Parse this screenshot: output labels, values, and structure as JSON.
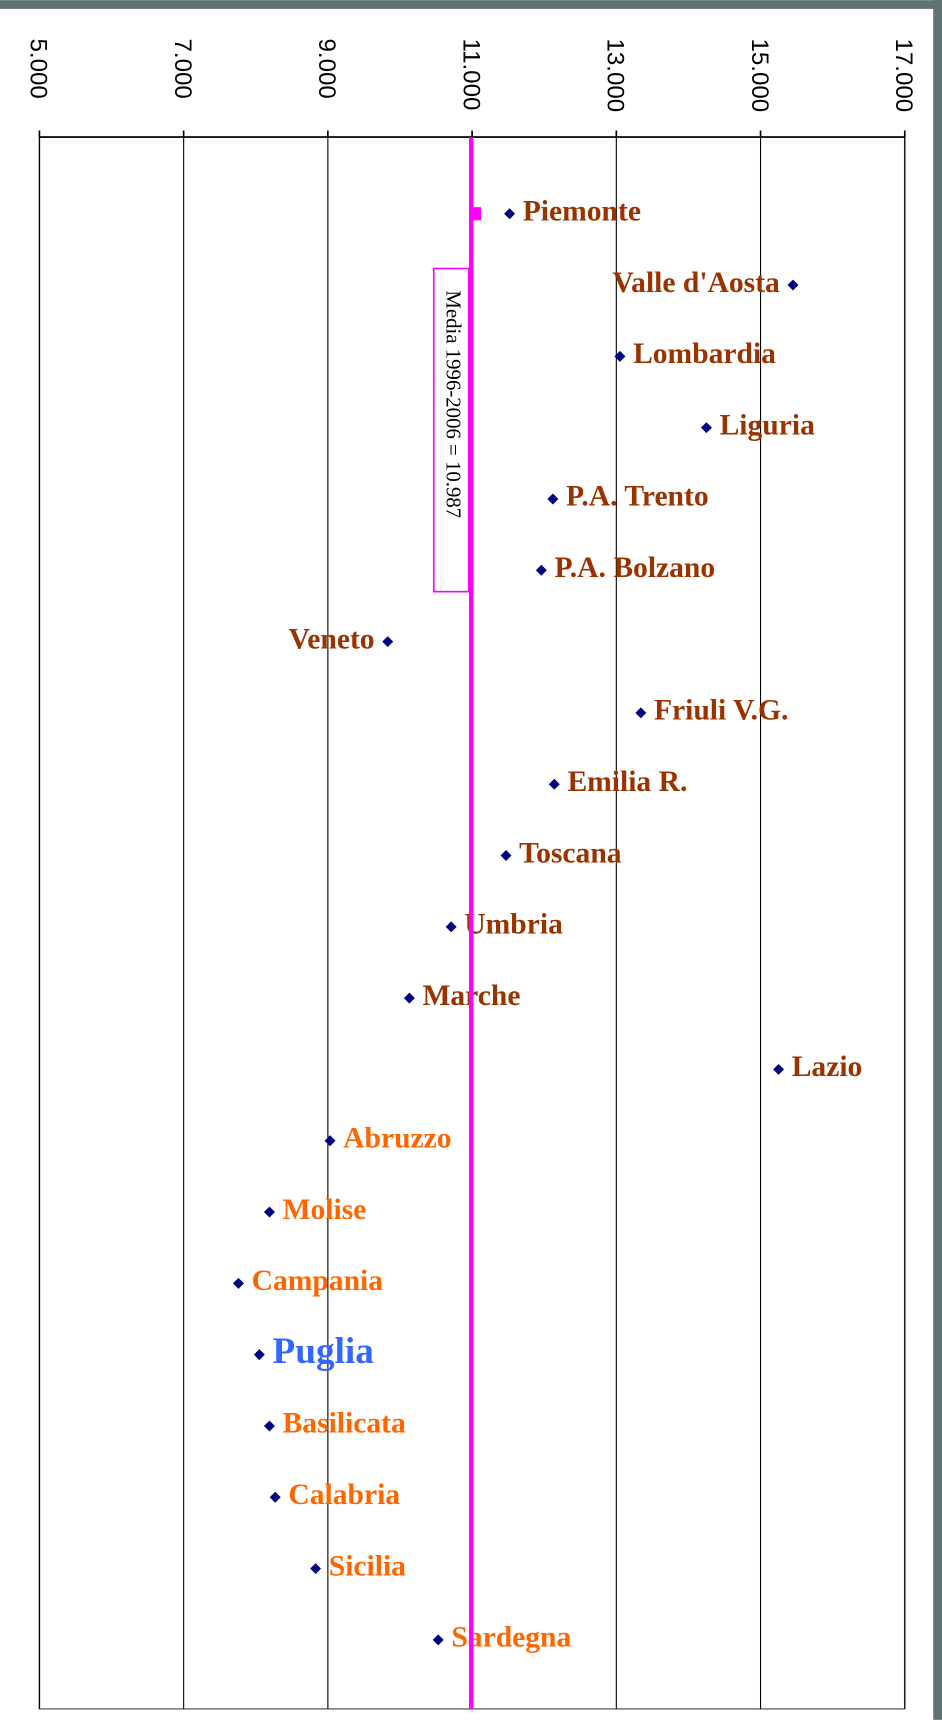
{
  "chart_data": {
    "type": "scatter",
    "orientation": "horizontal",
    "categories": [
      "Piemonte",
      "Valle d'Aosta",
      "Lombardia",
      "Liguria",
      "P.A. Trento",
      "P.A. Bolzano",
      "Veneto",
      "Friuli V.G.",
      "Emilia R.",
      "Toscana",
      "Umbria",
      "Marche",
      "Lazio",
      "Abruzzo",
      "Molise",
      "Campania",
      "Puglia",
      "Basilicata",
      "Calabria",
      "Sicilia",
      "Sardegna"
    ],
    "values": [
      11520,
      15450,
      13050,
      14250,
      12120,
      11960,
      9830,
      13340,
      12140,
      11470,
      10710,
      10130,
      15250,
      9030,
      8190,
      7760,
      8050,
      8190,
      8270,
      8830,
      10530
    ],
    "color": "#000080",
    "label_colors": [
      "#993300",
      "#993300",
      "#993300",
      "#993300",
      "#993300",
      "#993300",
      "#993300",
      "#993300",
      "#993300",
      "#993300",
      "#993300",
      "#993300",
      "#993300",
      "#ff6600",
      "#ff6600",
      "#ff6600",
      "#3366ff",
      "#ff6600",
      "#ff6600",
      "#ff6600",
      "#ff6600"
    ],
    "xlim": [
      5000,
      17000
    ],
    "xticks": [
      {
        "value": 5000,
        "label": "5.000"
      },
      {
        "value": 7000,
        "label": "7.000"
      },
      {
        "value": 9000,
        "label": "9.000"
      },
      {
        "value": 11000,
        "label": "11.000"
      },
      {
        "value": 13000,
        "label": "13.000"
      },
      {
        "value": 15000,
        "label": "15.000"
      },
      {
        "value": 17000,
        "label": "17.000"
      }
    ],
    "grid": true,
    "mean": {
      "value": 10987,
      "label": "Media 1996-2006 = 10.987",
      "color": "#ff00ff"
    }
  }
}
